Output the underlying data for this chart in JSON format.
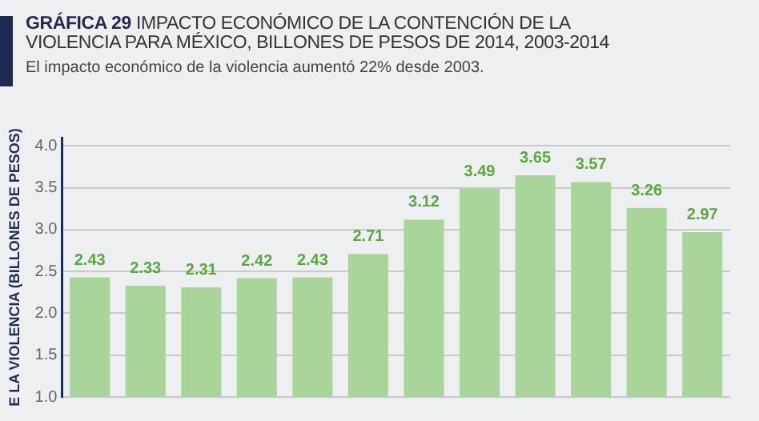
{
  "chart_data": {
    "type": "bar",
    "title": "GRÁFICA 29  IMPACTO ECONÓMICO DE LA CONTENCIÓN DE LA VIOLENCIA PARA MÉXICO, BILLONES DE PESOS DE 2014, 2003-2014",
    "subtitle": "El impacto económico de la violencia aumentó 22% desde 2003.",
    "ylabel": "E LA VIOLENCIA (BILLONES DE PESOS)",
    "categories": [
      null,
      null,
      null,
      null,
      null,
      null,
      null,
      null,
      null,
      null,
      null,
      null
    ],
    "values": [
      2.43,
      2.33,
      2.31,
      2.42,
      2.43,
      2.71,
      3.12,
      3.49,
      3.65,
      3.57,
      3.26,
      2.97
    ],
    "color": "#a9d59b",
    "ylim": [
      1.0,
      4.1
    ],
    "yticks": [
      {
        "value": 1.0,
        "label": "1.0"
      },
      {
        "value": 1.5,
        "label": "1.5"
      },
      {
        "value": 2.0,
        "label": "2.0"
      },
      {
        "value": 2.5,
        "label": "2.5"
      },
      {
        "value": 3.0,
        "label": "3.0"
      },
      {
        "value": 3.5,
        "label": "3.5"
      },
      {
        "value": 4.0,
        "label": "4.0"
      }
    ],
    "grid": "y",
    "data_labels": true,
    "legend": false
  }
}
